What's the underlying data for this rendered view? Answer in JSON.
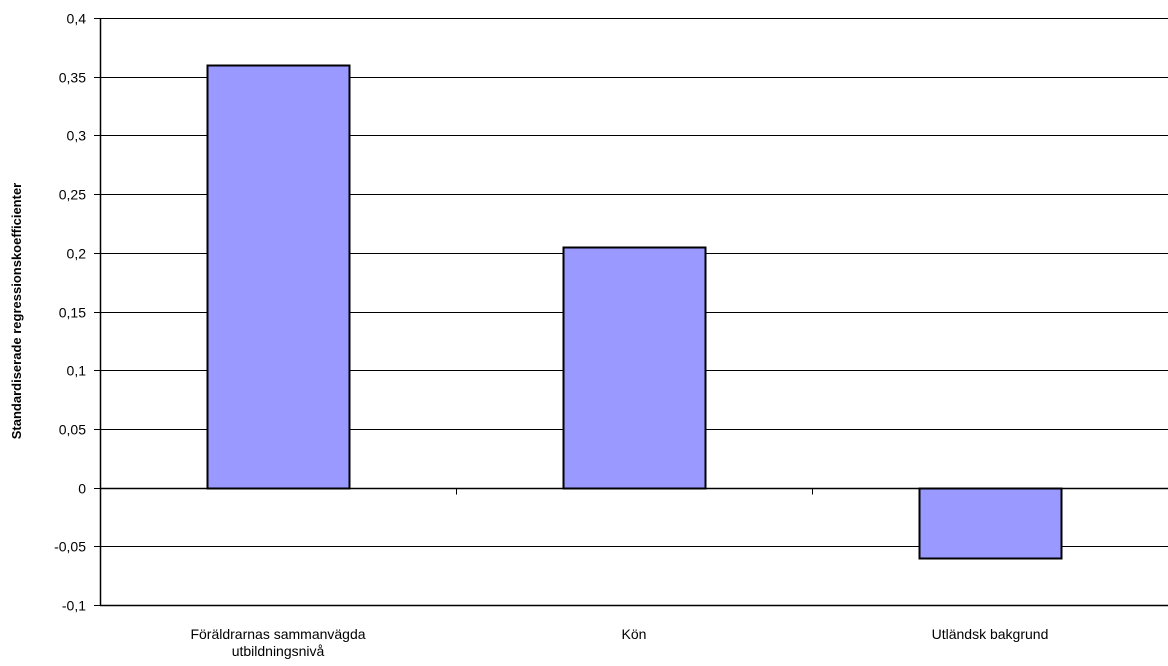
{
  "chart_data": {
    "type": "bar",
    "title": "",
    "xlabel": "",
    "ylabel": "Standardiserade regressionskoefficienter",
    "categories": [
      [
        "Föräldrarnas sammanvägda",
        "utbildningsnivå"
      ],
      [
        "Kön"
      ],
      [
        "Utländsk bakgrund"
      ]
    ],
    "values": [
      0.36,
      0.205,
      -0.06
    ],
    "ylim": [
      -0.1,
      0.4
    ],
    "yticks": [
      0.4,
      0.35,
      0.3,
      0.25,
      0.2,
      0.15,
      0.1,
      0.05,
      0,
      -0.05,
      -0.1
    ],
    "ytick_labels": [
      "0,4",
      "0,35",
      "0,3",
      "0,25",
      "0,2",
      "0,15",
      "0,1",
      "0,05",
      "0",
      "-0,05",
      "-0,1"
    ],
    "grid": true,
    "legend": "none",
    "bar_color": "#9999ff",
    "bar_edge_color": "#000000",
    "grid_color": "#000000"
  }
}
